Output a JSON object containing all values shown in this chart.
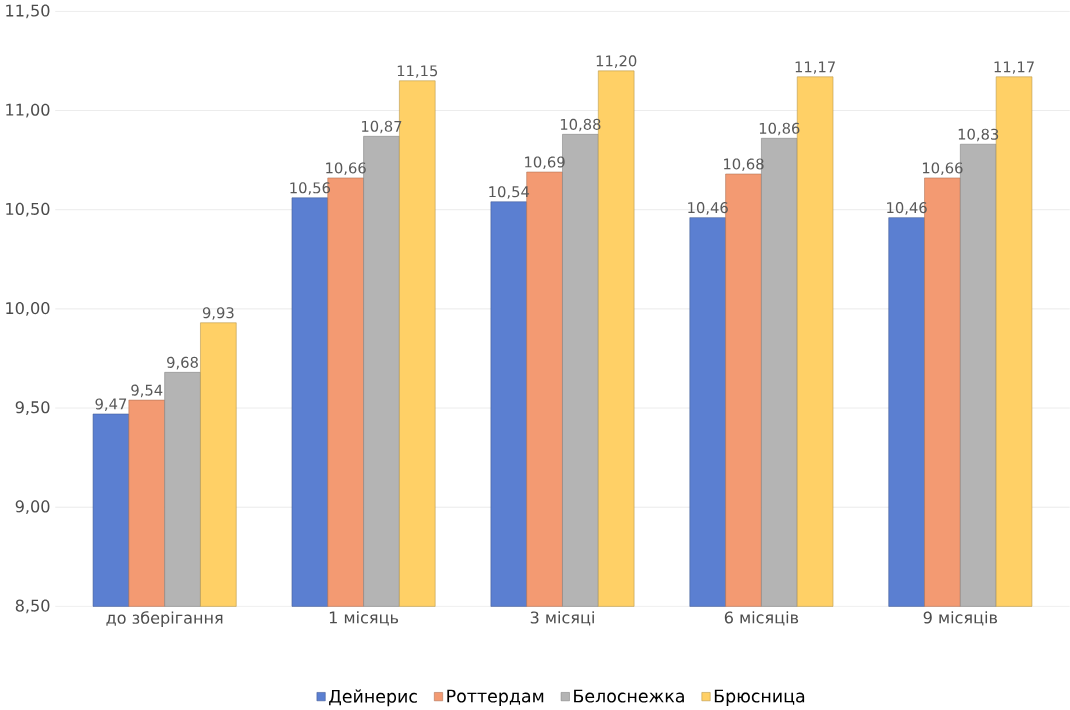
{
  "chart_data": {
    "type": "bar",
    "categories": [
      "до зберігання",
      "1 місяць",
      "3 місяці",
      "6 місяців",
      "9 місяців"
    ],
    "series": [
      {
        "name": "Дейнерис",
        "color": "#5b7fd1",
        "values": [
          9.47,
          10.56,
          10.54,
          10.46,
          10.46
        ],
        "value_labels": [
          "9,47",
          "10,56",
          "10,54",
          "10,46",
          "10,46"
        ]
      },
      {
        "name": "Роттердам",
        "color": "#f39a72",
        "values": [
          9.54,
          10.66,
          10.69,
          10.68,
          10.66
        ],
        "value_labels": [
          "9,54",
          "10,66",
          "10,69",
          "10,68",
          "10,66"
        ]
      },
      {
        "name": "Белоснежка",
        "color": "#b4b4b4",
        "values": [
          9.68,
          10.87,
          10.88,
          10.86,
          10.83
        ],
        "value_labels": [
          "9,68",
          "10,87",
          "10,88",
          "10,86",
          "10,83"
        ]
      },
      {
        "name": "Брюсница",
        "color": "#ffd066",
        "values": [
          9.93,
          11.15,
          11.2,
          11.17,
          11.17
        ],
        "value_labels": [
          "9,93",
          "11,15",
          "11,20",
          "11,17",
          "11,17"
        ]
      }
    ],
    "ylim": [
      8.5,
      11.5
    ],
    "yticks": [
      {
        "value": 8.5,
        "label": "8,50"
      },
      {
        "value": 9.0,
        "label": "9,00"
      },
      {
        "value": 9.5,
        "label": "9,50"
      },
      {
        "value": 10.0,
        "label": "10,00"
      },
      {
        "value": 10.5,
        "label": "10,50"
      },
      {
        "value": 11.0,
        "label": "11,00"
      },
      {
        "value": 11.5,
        "label": "11,50"
      }
    ],
    "grid": "y",
    "legend": "bottom"
  }
}
